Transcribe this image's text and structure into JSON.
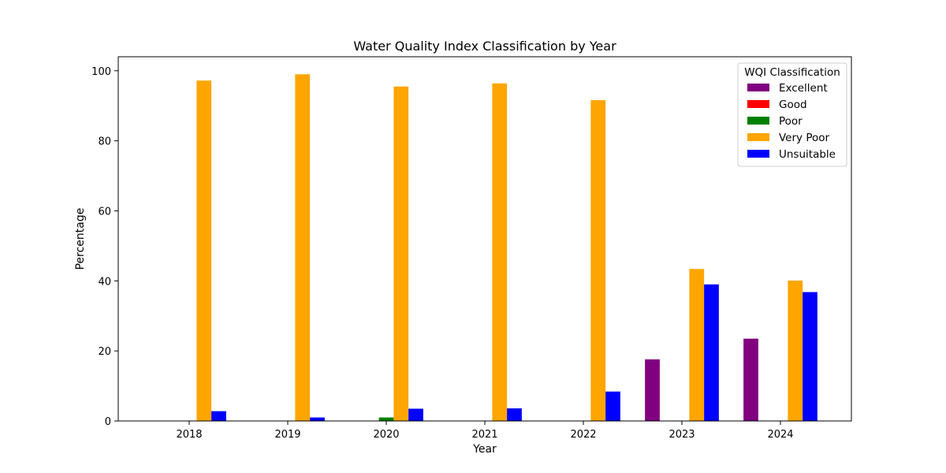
{
  "chart_data": {
    "type": "bar",
    "title": "Water Quality Index Classification by Year",
    "xlabel": "Year",
    "ylabel": "Percentage",
    "ylim": [
      0,
      104
    ],
    "yticks": [
      0,
      20,
      40,
      60,
      80,
      100
    ],
    "categories": [
      "2018",
      "2019",
      "2020",
      "2021",
      "2022",
      "2023",
      "2024"
    ],
    "legend": {
      "title": "WQI Classification",
      "placement": "top-right"
    },
    "grid": false,
    "series": [
      {
        "name": "Excellent",
        "color": "#800080",
        "values": [
          0,
          0,
          0,
          0,
          0,
          17.6,
          23.5
        ]
      },
      {
        "name": "Good",
        "color": "#ff0000",
        "values": [
          0,
          0,
          0,
          0,
          0,
          0,
          0
        ]
      },
      {
        "name": "Poor",
        "color": "#008000",
        "values": [
          0,
          0,
          1.0,
          0,
          0,
          0,
          0
        ]
      },
      {
        "name": "Very Poor",
        "color": "#ffa500",
        "values": [
          97.2,
          99.0,
          95.5,
          96.4,
          91.6,
          43.4,
          40.1
        ]
      },
      {
        "name": "Unsuitable",
        "color": "#0000ff",
        "values": [
          2.8,
          1.0,
          3.5,
          3.6,
          8.4,
          39.0,
          36.8
        ]
      }
    ]
  }
}
